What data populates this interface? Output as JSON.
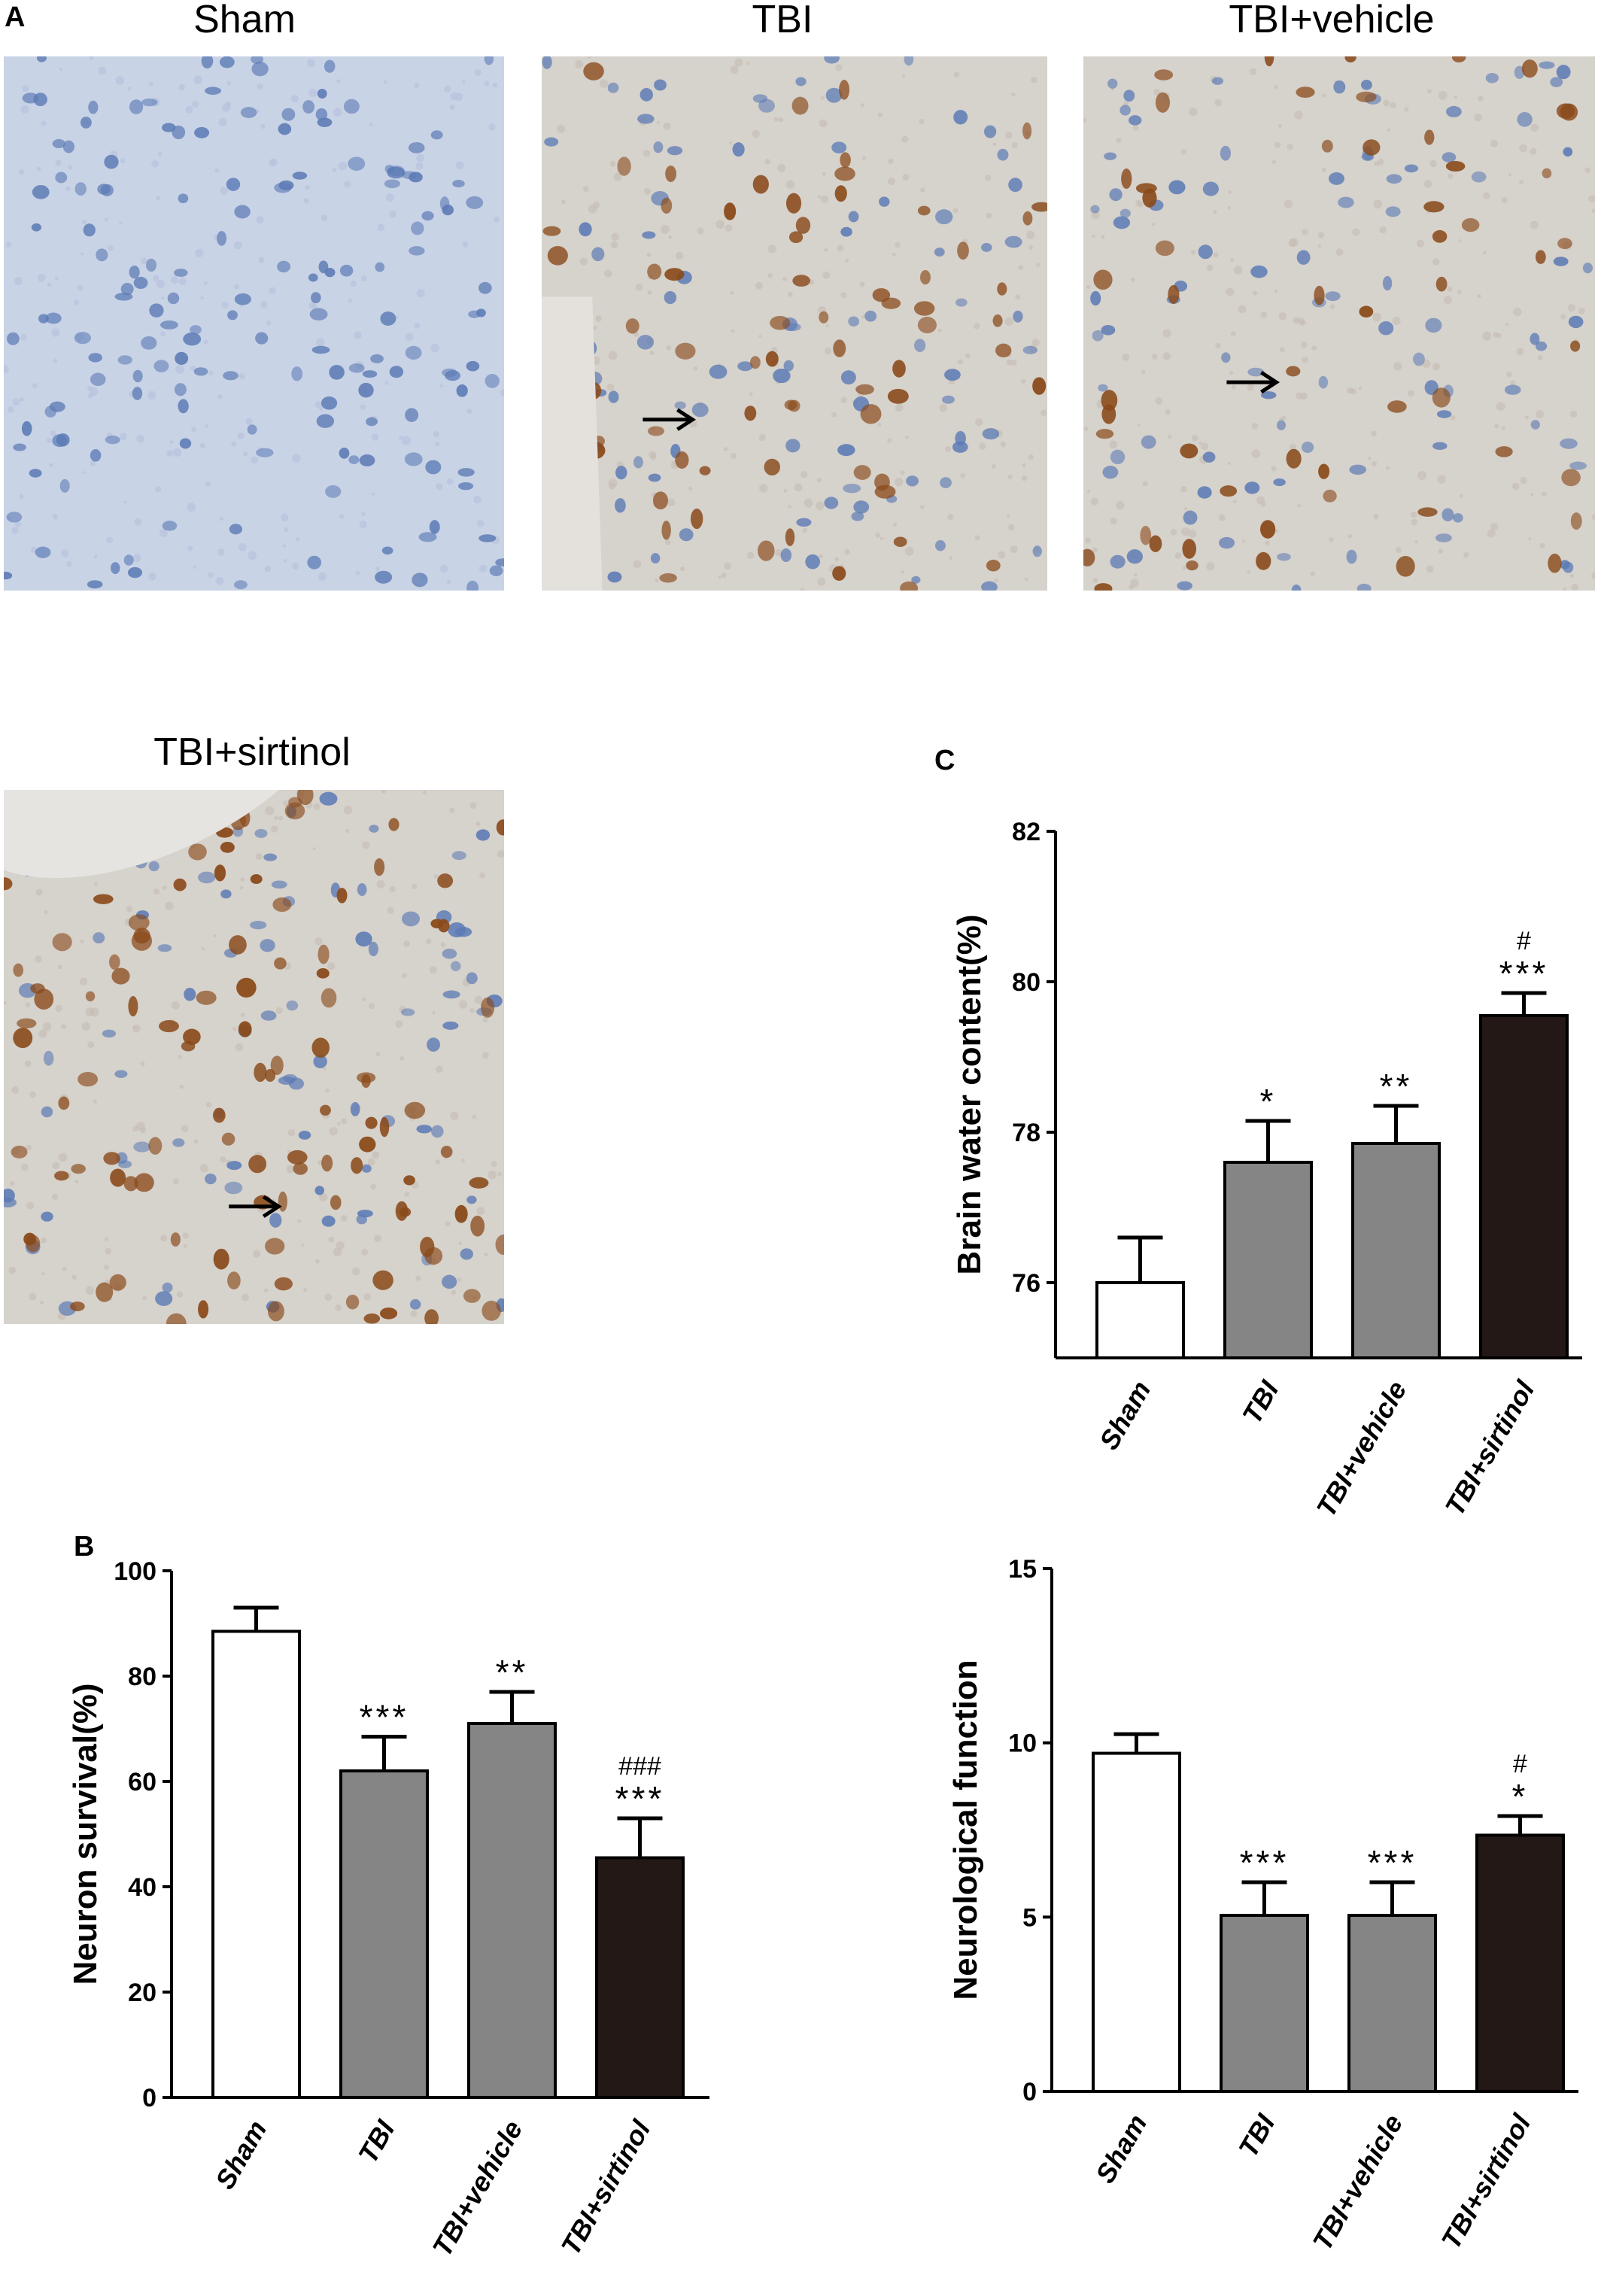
{
  "panels": {
    "a_label": "A",
    "b_label": "B",
    "c_label": "C"
  },
  "micrographs": [
    {
      "title": "Sham",
      "stain": "blue",
      "arrow": false
    },
    {
      "title": "TBI",
      "stain": "brown-mixed",
      "arrow": true
    },
    {
      "title": "TBI+vehicle",
      "stain": "brown-light",
      "arrow": true
    },
    {
      "title": "TBI+sirtinol",
      "stain": "brown-dense",
      "arrow": true
    }
  ],
  "colors": {
    "sham_bar": "#ffffff",
    "tbi_bar": "#858585",
    "sirtinol_bar": "#231815",
    "micro_blue_bg": "#c9d3e6",
    "micro_brown_bg": "#d6d2cc",
    "stain_brown": "#8a4a1a",
    "stain_blue": "#5c7bb5"
  },
  "chart_data": [
    {
      "id": "neuron-survival",
      "panel": "B",
      "type": "bar",
      "categories": [
        "Sham",
        "TBI",
        "TBI+vehicle",
        "TBI+sirtinol"
      ],
      "values": [
        88.5,
        62,
        71,
        45.5
      ],
      "errors": [
        4.5,
        6.5,
        6,
        7.5
      ],
      "annotations": [
        "",
        "***",
        "**",
        "***"
      ],
      "annotations_top": [
        "",
        "",
        "",
        "###"
      ],
      "fills": [
        "#ffffff",
        "#858585",
        "#858585",
        "#231815"
      ],
      "ylabel": "Neuron survival(%)",
      "xlabel": "",
      "title": "",
      "ylim": [
        0,
        100
      ],
      "yticks": [
        0,
        20,
        40,
        60,
        80,
        100
      ]
    },
    {
      "id": "brain-water-content",
      "panel": "C",
      "type": "bar",
      "categories": [
        "Sham",
        "TBI",
        "TBI+vehicle",
        "TBI+sirtinol"
      ],
      "values": [
        76.0,
        77.6,
        77.85,
        79.55
      ],
      "errors": [
        0.6,
        0.55,
        0.5,
        0.3
      ],
      "annotations": [
        "",
        "*",
        "**",
        "***"
      ],
      "annotations_top": [
        "",
        "",
        "",
        "#"
      ],
      "fills": [
        "#ffffff",
        "#858585",
        "#858585",
        "#231815"
      ],
      "ylabel": "Brain water content(%)",
      "xlabel": "",
      "title": "",
      "ylim": [
        75,
        82
      ],
      "yticks": [
        76,
        78,
        80,
        82
      ]
    },
    {
      "id": "neurological-function",
      "panel": "C-lower",
      "type": "bar",
      "categories": [
        "Sham",
        "TBI",
        "TBI+vehicle",
        "TBI+sirtinol"
      ],
      "values": [
        9.7,
        5.05,
        5.05,
        7.35
      ],
      "errors": [
        0.55,
        0.95,
        0.95,
        0.55
      ],
      "annotations": [
        "",
        "***",
        "***",
        "*"
      ],
      "annotations_top": [
        "",
        "",
        "",
        "#"
      ],
      "fills": [
        "#ffffff",
        "#858585",
        "#858585",
        "#231815"
      ],
      "ylabel": "Neurological function",
      "xlabel": "",
      "title": "",
      "ylim": [
        0,
        15
      ],
      "yticks": [
        0,
        5,
        10,
        15
      ]
    }
  ]
}
